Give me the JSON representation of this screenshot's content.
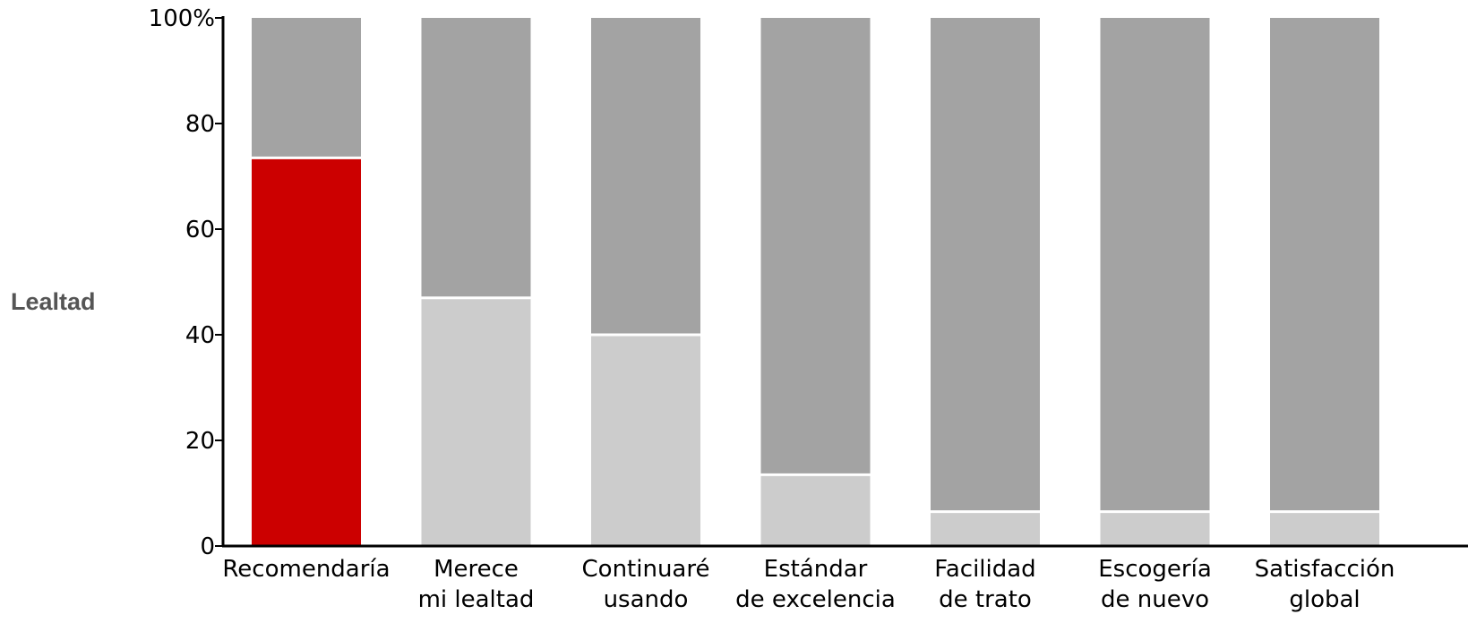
{
  "chart_data": {
    "type": "bar",
    "stacked": true,
    "ylabel": "Lealtad",
    "xlabel": "",
    "ylim": [
      0,
      100
    ],
    "yticks": [
      {
        "value": 0,
        "label": "0"
      },
      {
        "value": 20,
        "label": "20"
      },
      {
        "value": 40,
        "label": "40"
      },
      {
        "value": 60,
        "label": "60"
      },
      {
        "value": 80,
        "label": "80"
      },
      {
        "value": 100,
        "label": "100%"
      }
    ],
    "categories": [
      [
        "Recomendaría"
      ],
      [
        "Merece",
        "mi lealtad"
      ],
      [
        "Continuaré",
        "usando"
      ],
      [
        "Estándar",
        "de excelencia"
      ],
      [
        "Facilidad",
        "de trato"
      ],
      [
        "Escogería",
        "de nuevo"
      ],
      [
        "Satisfacción",
        "global"
      ]
    ],
    "values": [
      73.5,
      47,
      40,
      13.5,
      6.5,
      6.5,
      6.5
    ],
    "total": 100,
    "grid": false,
    "legend": "none",
    "colors": {
      "highlight": "#cc0000",
      "value": "#cccccc",
      "remainder": "#a3a3a3",
      "separator": "#ffffff",
      "axis": "#000000"
    },
    "highlight_index": 0
  }
}
